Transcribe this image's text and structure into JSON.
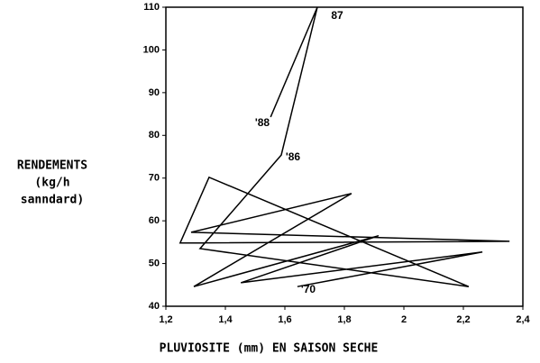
{
  "chart_data": {
    "type": "line",
    "x": [
      1.642,
      2.264,
      1.452,
      1.915,
      1.294,
      1.824,
      1.285,
      2.355,
      1.248,
      1.345,
      2.218,
      1.315,
      1.588,
      1.709,
      1.552
    ],
    "values": [
      44.6,
      52.7,
      45.5,
      56.5,
      44.6,
      66.4,
      57.3,
      55.2,
      54.8,
      70.2,
      44.6,
      53.5,
      75.4,
      110,
      84.3
    ],
    "color": "#000000",
    "xlabel": "PLUVIOSITE (mm) EN SAISON SECHE",
    "ylabel": [
      "RENDEMENTS",
      "(kg/h",
      "sanndard)"
    ],
    "annotations": [
      "'70",
      "'86",
      "87",
      "'88"
    ],
    "xlim": [
      1.2,
      2.4
    ],
    "xticks": [
      {
        "value": 1.2,
        "label": "1,2"
      },
      {
        "value": 1.4,
        "label": "1,4"
      },
      {
        "value": 1.6,
        "label": "1,6"
      },
      {
        "value": 1.8,
        "label": "1,8"
      },
      2,
      {
        "value": 2.2,
        "label": "2,2"
      },
      {
        "value": 2.4,
        "label": "2,4"
      }
    ],
    "ylim": [
      40,
      110
    ],
    "yticks": [
      40,
      50,
      60,
      70,
      80,
      90,
      100,
      110
    ]
  }
}
